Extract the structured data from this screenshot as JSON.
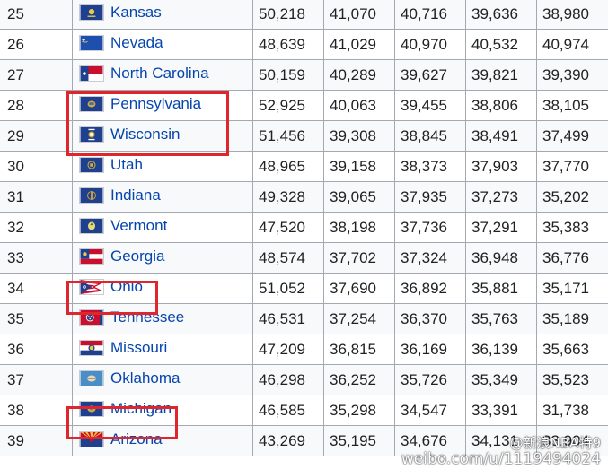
{
  "table": {
    "rows": [
      {
        "rank": "25",
        "state": "Kansas",
        "flag": "kansas-flag",
        "v1": "50,218",
        "v2": "41,070",
        "v3": "40,716",
        "v4": "39,636",
        "v5": "38,980"
      },
      {
        "rank": "26",
        "state": "Nevada",
        "flag": "nevada-flag",
        "v1": "48,639",
        "v2": "41,029",
        "v3": "40,970",
        "v4": "40,532",
        "v5": "40,974"
      },
      {
        "rank": "27",
        "state": "North Carolina",
        "flag": "north-carolina-flag",
        "v1": "50,159",
        "v2": "40,289",
        "v3": "39,627",
        "v4": "39,821",
        "v5": "39,390"
      },
      {
        "rank": "28",
        "state": "Pennsylvania",
        "flag": "pennsylvania-flag",
        "v1": "52,925",
        "v2": "40,063",
        "v3": "39,455",
        "v4": "38,806",
        "v5": "38,105"
      },
      {
        "rank": "29",
        "state": "Wisconsin",
        "flag": "wisconsin-flag",
        "v1": "51,456",
        "v2": "39,308",
        "v3": "38,845",
        "v4": "38,491",
        "v5": "37,499"
      },
      {
        "rank": "30",
        "state": "Utah",
        "flag": "utah-flag",
        "v1": "48,965",
        "v2": "39,158",
        "v3": "38,373",
        "v4": "37,903",
        "v5": "37,770"
      },
      {
        "rank": "31",
        "state": "Indiana",
        "flag": "indiana-flag",
        "v1": "49,328",
        "v2": "39,065",
        "v3": "37,935",
        "v4": "37,273",
        "v5": "35,202"
      },
      {
        "rank": "32",
        "state": "Vermont",
        "flag": "vermont-flag",
        "v1": "47,520",
        "v2": "38,198",
        "v3": "37,736",
        "v4": "37,291",
        "v5": "35,383"
      },
      {
        "rank": "33",
        "state": "Georgia",
        "flag": "georgia-flag",
        "v1": "48,574",
        "v2": "37,702",
        "v3": "37,324",
        "v4": "36,948",
        "v5": "36,776"
      },
      {
        "rank": "34",
        "state": "Ohio",
        "flag": "ohio-flag",
        "v1": "51,052",
        "v2": "37,690",
        "v3": "36,892",
        "v4": "35,881",
        "v5": "35,171"
      },
      {
        "rank": "35",
        "state": "Tennessee",
        "flag": "tennessee-flag",
        "v1": "46,531",
        "v2": "37,254",
        "v3": "36,370",
        "v4": "35,763",
        "v5": "35,189"
      },
      {
        "rank": "36",
        "state": "Missouri",
        "flag": "missouri-flag",
        "v1": "47,209",
        "v2": "36,815",
        "v3": "36,169",
        "v4": "36,139",
        "v5": "35,663"
      },
      {
        "rank": "37",
        "state": "Oklahoma",
        "flag": "oklahoma-flag",
        "v1": "46,298",
        "v2": "36,252",
        "v3": "35,726",
        "v4": "35,349",
        "v5": "35,523"
      },
      {
        "rank": "38",
        "state": "Michigan",
        "flag": "michigan-flag",
        "v1": "46,585",
        "v2": "35,298",
        "v3": "34,547",
        "v4": "33,391",
        "v5": "31,738"
      },
      {
        "rank": "39",
        "state": "Arizona",
        "flag": "arizona-flag",
        "v1": "43,269",
        "v2": "35,195",
        "v3": "34,676",
        "v4": "34,131",
        "v5": "33,904"
      }
    ]
  },
  "highlights": [
    "Pennsylvania",
    "Wisconsin",
    "Ohio",
    "Michigan"
  ],
  "highlight_color": "#e0262d",
  "link_color": "#0645ad",
  "watermark": {
    "line1": "@新浪NBA特9",
    "line2": "weibo.com/u/1119494024"
  }
}
